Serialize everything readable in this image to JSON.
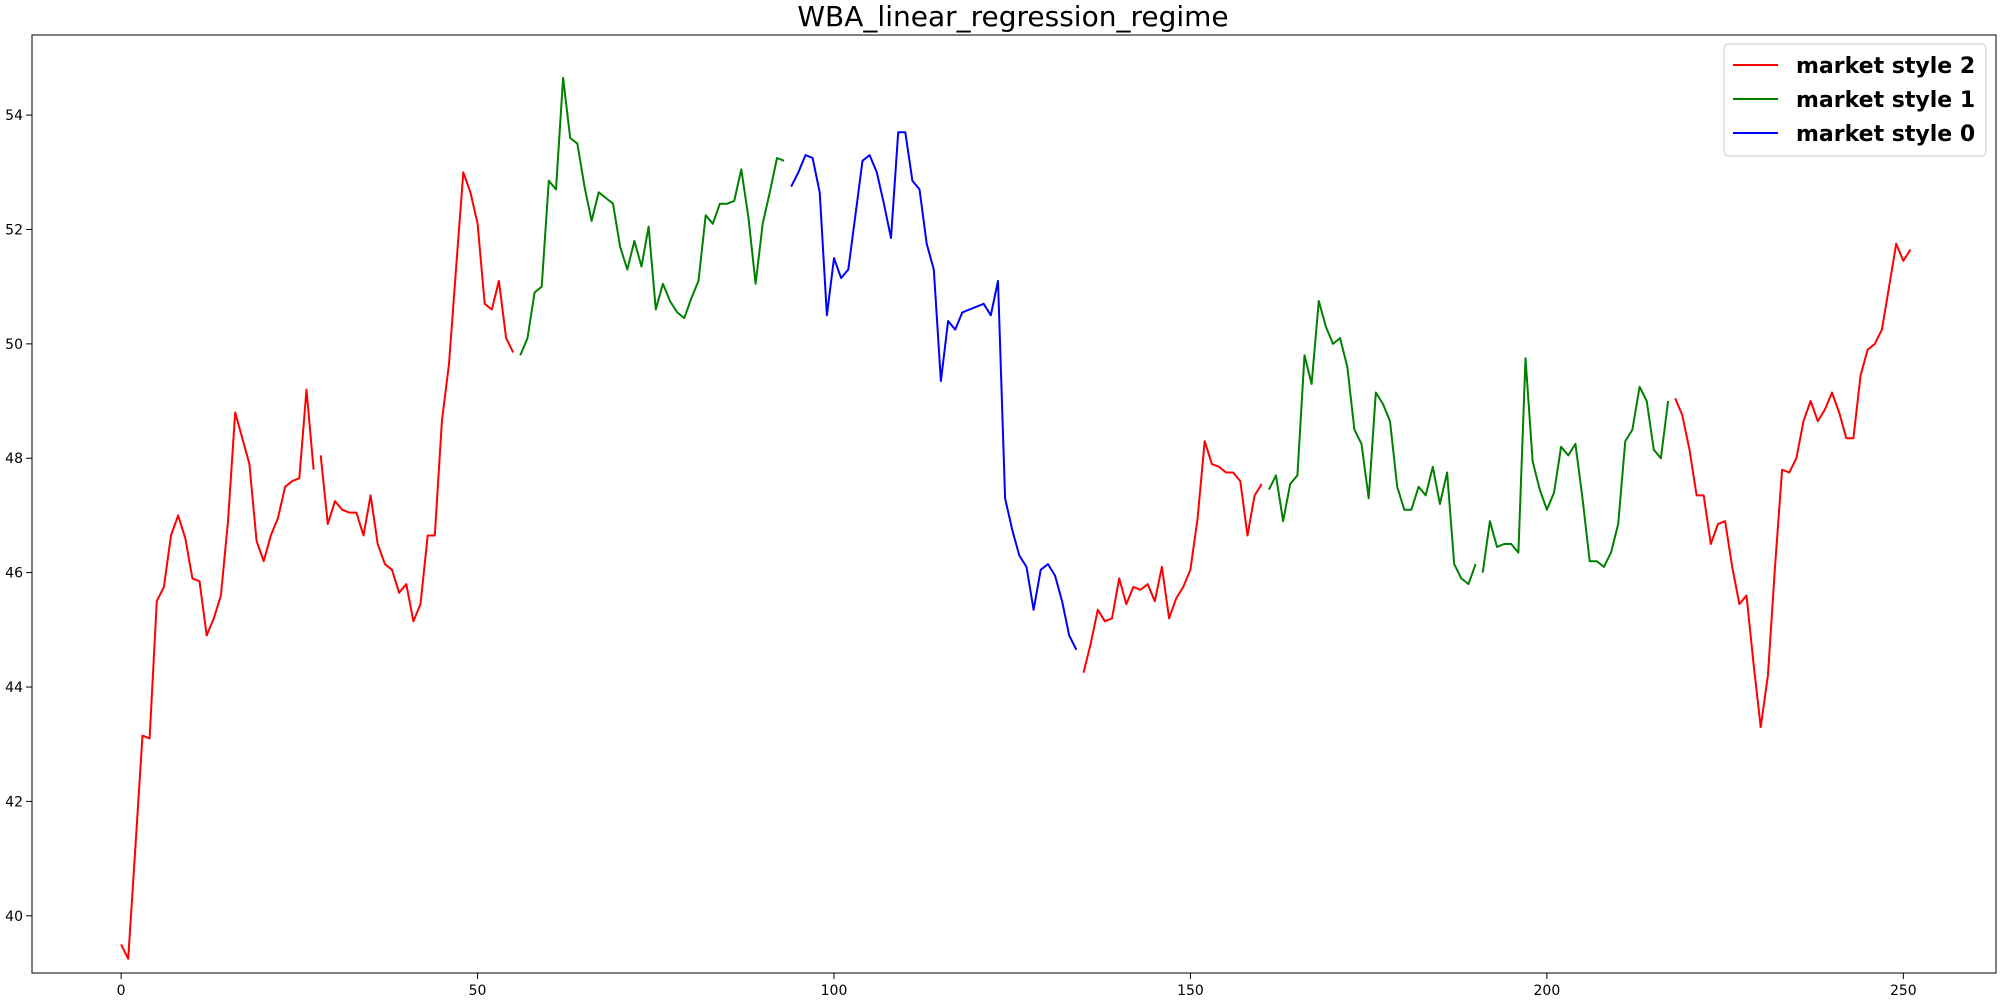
{
  "chart_data": {
    "type": "line",
    "title": "WBA_linear_regression_regime",
    "xlabel": "",
    "ylabel": "",
    "xlim": [
      -12.5,
      263
    ],
    "ylim": [
      39.0,
      55.4
    ],
    "xticks": [
      0,
      50,
      100,
      150,
      200,
      250
    ],
    "yticks": [
      40,
      42,
      44,
      46,
      48,
      50,
      52,
      54
    ],
    "grid": false,
    "legend_position": "top-right",
    "legend": [
      {
        "label": "market style 2",
        "color": "#ff0000"
      },
      {
        "label": "market style 1",
        "color": "#008000"
      },
      {
        "label": "market style 0",
        "color": "#0000ff"
      }
    ],
    "segments": [
      {
        "style": "market style 2",
        "color": "#ff0000",
        "x_start": 0,
        "y": [
          39.5,
          39.25,
          41.2,
          43.15,
          43.1,
          45.5,
          45.75,
          46.65,
          47.0,
          46.6,
          45.9,
          45.85,
          44.9,
          45.2,
          45.6,
          46.9,
          48.8,
          48.35,
          47.9,
          46.55,
          46.2,
          46.65,
          46.95,
          47.5,
          47.6,
          47.65,
          49.2,
          47.8
        ]
      },
      {
        "style": "market style 2",
        "color": "#ff0000",
        "x_start": 28,
        "y": [
          48.05,
          46.85,
          47.25,
          47.1,
          47.05,
          47.05,
          46.65,
          47.35,
          46.5,
          46.15,
          46.05,
          45.65,
          45.8,
          45.15,
          45.45,
          46.65,
          46.65,
          48.65,
          49.65,
          51.35,
          53.0,
          52.65,
          52.1,
          50.7,
          50.6,
          51.1,
          50.1,
          49.85
        ]
      },
      {
        "style": "market style 1",
        "color": "#008000",
        "x_start": 56,
        "y": [
          49.8,
          50.1,
          50.9,
          51.0,
          52.85,
          52.7,
          54.65,
          53.6,
          53.5,
          52.75,
          52.15,
          52.65,
          52.55,
          52.45,
          51.7,
          51.3,
          51.8,
          51.35,
          52.05,
          50.6,
          51.05,
          50.75,
          50.55,
          50.45,
          50.8,
          51.1,
          52.25,
          52.1,
          52.45,
          52.45,
          52.5,
          53.05,
          52.2,
          51.05,
          52.1,
          52.65,
          53.25,
          53.2
        ]
      },
      {
        "style": "market style 0",
        "color": "#0000ff",
        "x_start": 94,
        "y": [
          52.75,
          53.0,
          53.3,
          53.25,
          52.65,
          50.5,
          51.5,
          51.15,
          51.3,
          52.25,
          53.2,
          53.3,
          53.0,
          52.45,
          51.85,
          53.7,
          53.7,
          52.85,
          52.7,
          51.75,
          51.3,
          49.35,
          50.4,
          50.25,
          50.55,
          50.6,
          50.65,
          50.7,
          50.5,
          51.1,
          47.3,
          46.75,
          46.3,
          46.1,
          45.35,
          46.05,
          46.15,
          45.95,
          45.5,
          44.9,
          44.65
        ]
      },
      {
        "style": "market style 2",
        "color": "#ff0000",
        "x_start": 135,
        "y": [
          44.25,
          44.75,
          45.35,
          45.15,
          45.2,
          45.9,
          45.45,
          45.75,
          45.7,
          45.8,
          45.5,
          46.1,
          45.2,
          45.55,
          45.75,
          46.05,
          46.95,
          48.3,
          47.9,
          47.85,
          47.75,
          47.75,
          47.6,
          46.65,
          47.35,
          47.55
        ]
      },
      {
        "style": "market style 1",
        "color": "#008000",
        "x_start": 161,
        "y": [
          47.45,
          47.7,
          46.9,
          47.55,
          47.7,
          49.8,
          49.3,
          50.75,
          50.3,
          50.0,
          50.1,
          49.6,
          48.5,
          48.25,
          47.3,
          49.15,
          48.95,
          48.65,
          47.5,
          47.1,
          47.1,
          47.5,
          47.35,
          47.85,
          47.2,
          47.75,
          46.15,
          45.9,
          45.8,
          46.15
        ]
      },
      {
        "style": "market style 1",
        "color": "#008000",
        "x_start": 191,
        "y": [
          46.0,
          46.9,
          46.45,
          46.5,
          46.5,
          46.35,
          49.75,
          47.95,
          47.45,
          47.1,
          47.4,
          48.2,
          48.05,
          48.25,
          47.3,
          46.2,
          46.2,
          46.1,
          46.35,
          46.85,
          48.3,
          48.5,
          49.25,
          49.0,
          48.15,
          48.0,
          49.0
        ]
      },
      {
        "style": "market style 2",
        "color": "#ff0000",
        "x_start": 218,
        "y": [
          49.05,
          48.75,
          48.15,
          47.35,
          47.35,
          46.5,
          46.85,
          46.9,
          46.1,
          45.45,
          45.6,
          44.4,
          43.3,
          44.2,
          46.1,
          47.8,
          47.75,
          48.0,
          48.65,
          49.0,
          48.65,
          48.85,
          49.15,
          48.8,
          48.35,
          48.35,
          49.45,
          49.9,
          50.0,
          50.25,
          51.0,
          51.75,
          51.45,
          51.65
        ]
      }
    ]
  }
}
